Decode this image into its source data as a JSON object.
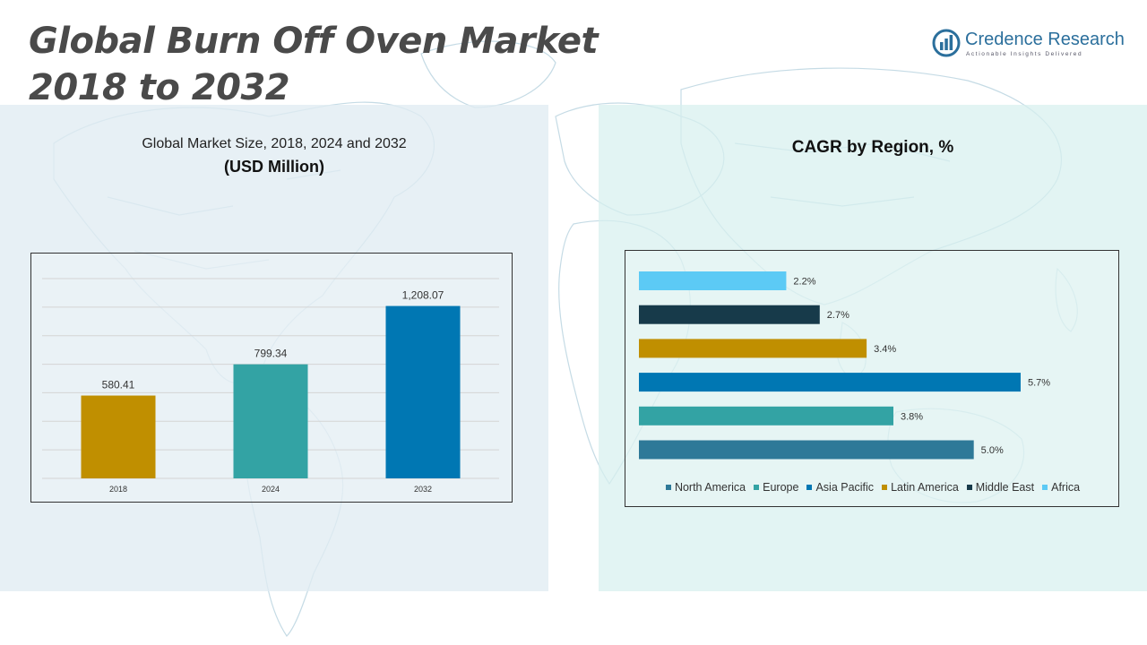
{
  "header": {
    "title_line1": "Global Burn Off Oven Market",
    "title_line2": "2018 to 2032"
  },
  "logo": {
    "name": "Credence Research",
    "tagline": "Actionable Insights Delivered",
    "icon": "credence-logo-icon",
    "color": "#2b6f9c"
  },
  "chart_data": [
    {
      "type": "bar",
      "title": "Global Market Size, 2018, 2024 and 2032",
      "subtitle": "(USD Million)",
      "categories": [
        "2018",
        "2024",
        "2032"
      ],
      "values": [
        580.41,
        799.34,
        1208.07
      ],
      "value_labels": [
        "580.41",
        "799.34",
        "1,208.07"
      ],
      "colors": [
        "#c08f00",
        "#33a3a4",
        "#0077b3"
      ],
      "ylim": [
        0,
        1400
      ],
      "grid": true,
      "grid_step": 200
    },
    {
      "type": "bar",
      "orientation": "horizontal",
      "title": "CAGR by Region, %",
      "categories": [
        "North America",
        "Europe",
        "Asia Pacific",
        "Latin America",
        "Middle East",
        "Africa"
      ],
      "values": [
        5.0,
        3.8,
        5.7,
        3.4,
        2.7,
        2.2
      ],
      "value_labels": [
        "5.0%",
        "3.8%",
        "5.7%",
        "3.4%",
        "2.7%",
        "2.2%"
      ],
      "colors": [
        "#2e7998",
        "#33a3a4",
        "#0077b3",
        "#c08f00",
        "#173a4a",
        "#5ccaf5"
      ],
      "xlim": [
        0,
        5.7
      ],
      "grid": false,
      "legend": {
        "placement": "bottom",
        "entries": [
          "North America",
          "Europe",
          "Asia Pacific",
          "Latin America",
          "Middle East",
          "Africa"
        ]
      }
    }
  ]
}
